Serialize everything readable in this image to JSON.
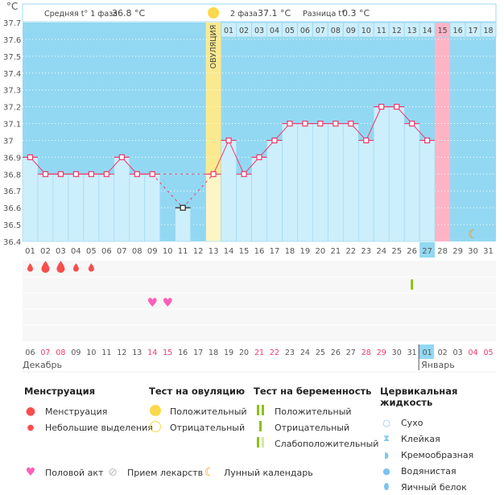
{
  "header": {
    "unit": "°C",
    "phase1_label": "Средняя t° 1 фаза",
    "phase1_value": "36.8 °C",
    "phase2_label": "2 фаза",
    "phase2_value": "37.1 °C",
    "diff_label": "Разница t°",
    "diff_value": "0.3 °C",
    "ovulation_label": "ОВУЛЯЦИЯ"
  },
  "chart_data": {
    "type": "line",
    "ylim": [
      36.4,
      37.7
    ],
    "yticks": [
      "37.7",
      "37.6",
      "37.5",
      "37.4",
      "37.3",
      "37.2",
      "37.1",
      "37",
      "36.9",
      "36.8",
      "36.7",
      "36.6",
      "36.5",
      "36.4"
    ],
    "cycle_days": [
      "01",
      "02",
      "03",
      "04",
      "05",
      "06",
      "07",
      "08",
      "09",
      "10",
      "11",
      "12",
      "13",
      "14",
      "15",
      "16",
      "17",
      "18",
      "19",
      "20",
      "21",
      "22",
      "23",
      "24",
      "25",
      "26",
      "27",
      "28",
      "29",
      "30",
      "31"
    ],
    "temperatures": [
      36.9,
      36.8,
      36.8,
      36.8,
      36.8,
      36.8,
      36.9,
      36.8,
      36.8,
      null,
      36.6,
      null,
      36.8,
      37.0,
      36.8,
      36.9,
      37.0,
      37.1,
      37.1,
      37.1,
      37.1,
      37.1,
      37.0,
      37.2,
      37.2,
      37.1,
      37.0,
      null,
      null,
      null,
      null
    ],
    "excluded_days": [
      11
    ],
    "ovulation_day": 13,
    "today_cycle_day": 27,
    "expected_period_day": 28,
    "phase2_days": [
      "01",
      "02",
      "03",
      "04",
      "05",
      "06",
      "07",
      "08",
      "09",
      "10",
      "11",
      "12",
      "13",
      "14",
      "15",
      "16",
      "17",
      "18"
    ],
    "phase2_highlight": "15",
    "dates": [
      "06",
      "07",
      "08",
      "09",
      "10",
      "11",
      "12",
      "13",
      "14",
      "15",
      "16",
      "17",
      "18",
      "19",
      "20",
      "21",
      "22",
      "23",
      "24",
      "25",
      "26",
      "27",
      "28",
      "29",
      "30",
      "31",
      "01",
      "02",
      "03",
      "04",
      "05"
    ],
    "weekend_dates_idx": [
      1,
      2,
      8,
      9,
      15,
      16,
      22,
      23,
      29,
      30
    ],
    "today_date_idx": 26,
    "months": [
      "Декабрь",
      "Январь"
    ],
    "menstruation": {
      "1": "small",
      "2": "large",
      "3": "large",
      "4": "small",
      "5": "small"
    },
    "intercourse_days": [
      9,
      10
    ],
    "pregnancy_test_negative_days": [
      26
    ],
    "moon_days": [
      30
    ],
    "colors": {
      "background": "#93d8f2",
      "bar": "#cdeefb",
      "line": "#f0386b",
      "ovulation": "#fbe98f",
      "expected_period": "#ffb4c6",
      "weekend": "#f0386b",
      "blood": "#f94d4d",
      "heart": "#fc5fb9",
      "test": "#8fbf1a",
      "moon": "#f39a13"
    }
  },
  "legend": {
    "menstruation": {
      "title": "Менструация",
      "items": [
        "Менструация",
        "Небольшие выделения"
      ]
    },
    "ovulation_test": {
      "title": "Тест на овуляцию",
      "items": [
        "Положительный",
        "Отрицательный"
      ]
    },
    "pregnancy_test": {
      "title": "Тест на беременность",
      "items": [
        "Положительный",
        "Отрицательный",
        "Слабоположительный"
      ]
    },
    "cervical": {
      "title": "Цервикальная жидкость",
      "items": [
        "Сухо",
        "Клейкая",
        "Кремообразная",
        "Водянистая",
        "Яичный белок"
      ]
    },
    "bottom": [
      "Половой акт",
      "Прием лекарств",
      "Лунный календарь"
    ]
  }
}
